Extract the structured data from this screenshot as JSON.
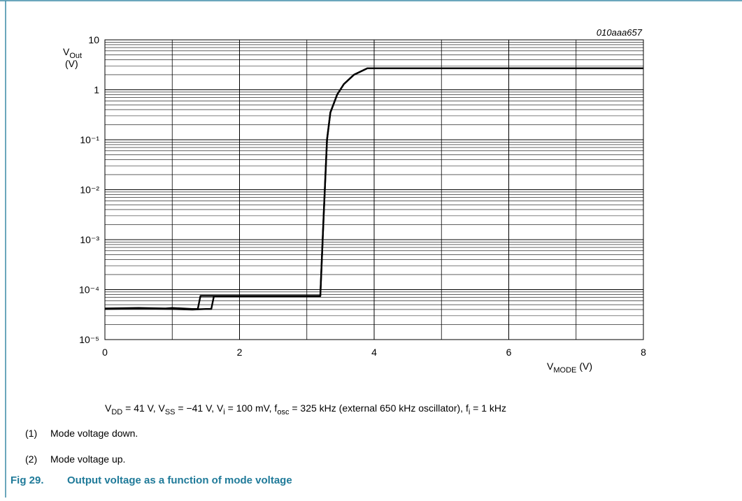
{
  "chart_data": {
    "type": "line",
    "chart_id": "010aaa657",
    "y_label": {
      "main": "V",
      "sub": "Out",
      "unit": "(V)"
    },
    "x_label": {
      "main": "V",
      "sub": "MODE",
      "unit": "(V)"
    },
    "xlim": [
      0,
      8
    ],
    "xticks": [
      0,
      2,
      4,
      6,
      8
    ],
    "ylim": [
      1e-05,
      10
    ],
    "yticks": [
      {
        "value": 1e-05,
        "label": "10⁻⁵"
      },
      {
        "value": 0.0001,
        "label": "10⁻⁴"
      },
      {
        "value": 0.001,
        "label": "10⁻³"
      },
      {
        "value": 0.01,
        "label": "10⁻²"
      },
      {
        "value": 0.1,
        "label": "10⁻¹"
      },
      1,
      10
    ],
    "log_y": true,
    "grid": true,
    "minor_grid": true,
    "series": [
      {
        "color": "#000000",
        "x": [
          0,
          0.5,
          0.9,
          1.0,
          1.3,
          1.38,
          1.42,
          1.6,
          2,
          3,
          3.2,
          3.25,
          3.3,
          3.35,
          3.45,
          3.55,
          3.7,
          3.9,
          4,
          6,
          8
        ],
        "values": [
          4.2e-05,
          4.3e-05,
          4.2e-05,
          4.3e-05,
          4.1e-05,
          4.1e-05,
          7.5e-05,
          7.5e-05,
          7.5e-05,
          7.5e-05,
          7.5e-05,
          0.003,
          0.1,
          0.35,
          0.8,
          1.3,
          2.0,
          2.7,
          2.7,
          2.7,
          2.7
        ]
      },
      {
        "color": "#000000",
        "x": [
          0,
          0.5,
          1.0,
          1.3,
          1.5,
          1.58,
          1.62,
          2,
          3,
          3.2,
          3.25,
          3.3,
          3.35,
          3.45,
          3.55,
          3.7,
          3.9,
          4,
          6,
          8
        ],
        "values": [
          4.1e-05,
          4.2e-05,
          4.1e-05,
          4e-05,
          4.1e-05,
          4.1e-05,
          7.4e-05,
          7.4e-05,
          7.4e-05,
          7.4e-05,
          0.003,
          0.1,
          0.35,
          0.8,
          1.3,
          2.0,
          2.7,
          2.7,
          2.7,
          2.7
        ]
      }
    ]
  },
  "conditions": [
    {
      "text": "V",
      "sub": "DD"
    },
    {
      "text": " = 41 V, V",
      "sub": "SS"
    },
    {
      "text": " = −41 V, V",
      "sub": "i"
    },
    {
      "text": " = 100 mV, f",
      "sub": "osc"
    },
    {
      "text": " = 325 kHz (external 650 kHz oscillator), f",
      "sub": "i"
    },
    {
      "text": " = 1 kHz"
    }
  ],
  "notes": [
    {
      "marker": "(1)",
      "text": "Mode voltage down."
    },
    {
      "marker": "(2)",
      "text": "Mode voltage up."
    }
  ],
  "caption": {
    "number": "Fig 29.",
    "text": "Output voltage as a function of mode voltage"
  }
}
